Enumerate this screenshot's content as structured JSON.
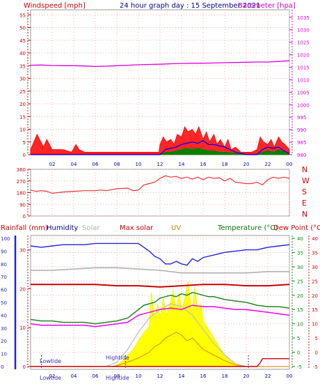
{
  "header": {
    "left_label": "Windspeed [mph]",
    "title": "24 hour graph day : 15 September 2021",
    "right_label": "Barometer [hpa]"
  },
  "colors": {
    "wind_gust": "#ff0000",
    "wind_avg": "#0000ff",
    "wind_min": "#008000",
    "barometer": "#dd00dd",
    "direction": "#ee3333",
    "rain": "#cc0000",
    "humidity": "#2222dd",
    "solar_line": "#b0b0b0",
    "solar_fill": "#ffff00",
    "uv": "#ee8800",
    "max_solar": "#c0c0c0",
    "temperature": "#228822",
    "dewpoint": "#ee00ee",
    "tide_marker": "#3333aa",
    "grid": "#ffaaaa",
    "left_axis_red": "#cc0000",
    "left_axis_blue": "#2222cc",
    "right_axis_green": "#008800",
    "right_axis_red": "#dd0000"
  },
  "chart_data": [
    {
      "id": "wind-barometer",
      "type": "line",
      "title": "24 hour graph day : 15 September 2021",
      "ylabel": "Windspeed [mph]",
      "y2label": "Barometer [hpa]",
      "ylim": [
        0,
        57
      ],
      "y2lim": [
        980,
        1038
      ],
      "yticks": [
        "0",
        "5",
        "10",
        "15",
        "20",
        "25",
        "30",
        "35",
        "40",
        "45",
        "50",
        "55"
      ],
      "y2ticks": [
        "980",
        "985",
        "990",
        "995",
        "1000",
        "1005",
        "1010",
        "1015",
        "1020",
        "1025",
        "1030",
        "1035"
      ],
      "xlim": [
        0,
        24
      ],
      "xticks": [
        "02",
        "04",
        "06",
        "08",
        "10",
        "12",
        "14",
        "16",
        "18",
        "20",
        "22",
        "00"
      ],
      "grid": true,
      "series": [
        {
          "key": "barometer",
          "axis": "y2",
          "x": [
            0,
            1,
            2,
            3,
            4,
            5,
            6,
            7,
            8,
            9,
            10,
            11,
            12,
            13,
            14,
            15,
            16,
            17,
            18,
            19,
            20,
            21,
            22,
            23,
            24
          ],
          "values": [
            1015.8,
            1015.9,
            1015.7,
            1015.6,
            1015.6,
            1015.5,
            1015.3,
            1015.4,
            1015.6,
            1015.8,
            1016.0,
            1016.1,
            1016.2,
            1016.4,
            1016.5,
            1016.6,
            1016.6,
            1016.7,
            1016.8,
            1016.9,
            1017.0,
            1017.1,
            1017.1,
            1017.3,
            1017.6
          ]
        },
        {
          "key": "wind_gust",
          "axis": "y",
          "x": [
            0,
            0.3,
            0.6,
            1.2,
            1.5,
            2.0,
            3.0,
            3.8,
            4.2,
            4.5,
            5.0,
            6.0,
            8.0,
            10.0,
            11.9,
            12.0,
            12.3,
            12.6,
            13.0,
            13.3,
            13.6,
            14.0,
            14.3,
            14.6,
            15.0,
            15.3,
            15.6,
            16.0,
            16.3,
            16.6,
            17.0,
            17.3,
            17.6,
            18.0,
            18.3,
            18.6,
            19.0,
            19.5,
            20.0,
            20.5,
            21.0,
            21.3,
            21.6,
            22.0,
            22.3,
            22.6,
            23.0,
            23.3,
            23.6,
            24.0
          ],
          "values": [
            2,
            5,
            8,
            3,
            6,
            2,
            2,
            1,
            4,
            2,
            1,
            1,
            1,
            1,
            1,
            4,
            7,
            5,
            6,
            4,
            8,
            7,
            11,
            9,
            10,
            8,
            11,
            6,
            9,
            5,
            8,
            4,
            6,
            3,
            6,
            2,
            3,
            1,
            1,
            1,
            2,
            7,
            5,
            4,
            6,
            3,
            7,
            5,
            4,
            2
          ]
        },
        {
          "key": "wind_avg",
          "axis": "y",
          "x": [
            0,
            2,
            4,
            6,
            8,
            10,
            12,
            12.5,
            13,
            13.5,
            14,
            14.5,
            15,
            15.5,
            16,
            16.5,
            17,
            17.5,
            18,
            18.5,
            19,
            20,
            21,
            21.5,
            22,
            22.5,
            23,
            23.5,
            24
          ],
          "values": [
            0,
            0,
            0,
            0,
            0,
            0,
            0,
            2,
            2.5,
            3,
            4,
            4.5,
            5,
            4.5,
            5.5,
            4,
            4,
            3.5,
            3,
            2,
            1,
            0,
            0,
            2,
            3,
            2.5,
            3,
            1.5,
            0.5
          ]
        },
        {
          "key": "wind_min",
          "axis": "y",
          "x": [
            0,
            2,
            4,
            6,
            8,
            10,
            12,
            12.5,
            13,
            13.5,
            14,
            14.5,
            15,
            15.5,
            16,
            16.5,
            17,
            17.5,
            18,
            19,
            20,
            21,
            21.5,
            22,
            22.5,
            23,
            23.5,
            24
          ],
          "values": [
            0,
            0,
            0,
            0,
            0,
            0,
            0,
            1,
            1,
            1.5,
            2,
            2.5,
            2,
            2.5,
            2,
            1.5,
            1.5,
            1,
            1,
            0.5,
            0,
            0,
            1,
            1.5,
            1,
            2,
            1,
            0
          ]
        }
      ]
    },
    {
      "id": "wind-direction",
      "type": "line",
      "ylim": [
        0,
        360
      ],
      "yticks": [
        "0",
        "90",
        "180",
        "270",
        "360"
      ],
      "y2ticks": [
        "N",
        "W",
        "S",
        "E",
        "N"
      ],
      "xlim": [
        0,
        24
      ],
      "series": [
        {
          "key": "direction",
          "x": [
            0,
            0.5,
            1,
            1.5,
            2,
            3,
            4,
            5,
            6,
            6.5,
            7,
            8,
            9,
            9.5,
            10,
            10.5,
            11,
            11.5,
            12,
            12.5,
            13,
            13.5,
            14,
            14.5,
            15,
            15.5,
            16,
            16.5,
            17,
            17.5,
            18,
            18.5,
            19,
            19.5,
            20,
            20.5,
            21,
            21.5,
            22,
            22.5,
            23,
            23.5,
            24
          ],
          "values": [
            200,
            190,
            195,
            190,
            175,
            185,
            190,
            195,
            195,
            200,
            195,
            210,
            215,
            195,
            200,
            240,
            250,
            260,
            290,
            310,
            300,
            305,
            290,
            300,
            285,
            300,
            280,
            300,
            290,
            295,
            270,
            290,
            260,
            255,
            250,
            250,
            260,
            240,
            280,
            300,
            290,
            300,
            290
          ]
        }
      ]
    },
    {
      "id": "temperature-humidity",
      "type": "line",
      "header_labels": [
        "Rainfall (mm)",
        "Humidity",
        "Solar",
        "Max solar",
        "UV",
        "Temperature (°C)",
        "Dew Point (°C)"
      ],
      "y_rain_ticks": [
        "0",
        "10",
        "20",
        "30"
      ],
      "y_humidity_ticks": [
        "0",
        "10",
        "20",
        "30",
        "40",
        "50",
        "60",
        "70",
        "80",
        "90",
        "100"
      ],
      "y_temperature_ticks": [
        "-5",
        "0",
        "5",
        "10",
        "15",
        "20",
        "25",
        "30",
        "35",
        "40"
      ],
      "y_dewpoint_ticks": [
        "-5",
        "0",
        "5",
        "10",
        "15",
        "20",
        "25",
        "30",
        "35",
        "40"
      ],
      "ylim_temperature": [
        -5,
        40
      ],
      "xlim": [
        0,
        24
      ],
      "xticks": [
        "02",
        "04",
        "06",
        "08",
        "10",
        "12",
        "14",
        "16",
        "18",
        "20",
        "22",
        "00"
      ],
      "tide_labels": [
        "Lowtide",
        "Hightide"
      ],
      "series": [
        {
          "key": "humidity",
          "x": [
            0,
            1,
            2,
            3,
            4,
            5,
            6,
            7,
            8,
            9,
            10,
            11,
            11.5,
            12,
            12.5,
            13,
            13.5,
            14,
            14.5,
            15,
            15.5,
            16,
            17,
            18,
            19,
            20,
            21,
            22,
            23,
            24
          ],
          "values": [
            94,
            93,
            94,
            95,
            95,
            95,
            96,
            96,
            96,
            96,
            96,
            90,
            86,
            84,
            80,
            80,
            82,
            80,
            79,
            84,
            82,
            85,
            87,
            89,
            90,
            91,
            91,
            93,
            94,
            95
          ]
        },
        {
          "key": "solar_line",
          "x": [
            0,
            2,
            4,
            6,
            8,
            10,
            12,
            14,
            16,
            18,
            20,
            22,
            24
          ],
          "values": [
            75,
            75,
            76,
            77,
            77,
            76,
            75,
            73,
            73,
            73,
            73,
            74,
            74
          ]
        },
        {
          "key": "max_solar",
          "x": [
            0,
            2,
            4,
            6,
            8,
            10,
            12,
            14,
            16,
            18,
            20,
            22,
            24
          ],
          "values": [
            64,
            64,
            64,
            64,
            63,
            63,
            62,
            63,
            64,
            64,
            63,
            63,
            64
          ]
        },
        {
          "key": "temperature",
          "x": [
            0,
            1,
            2,
            3,
            4,
            5,
            6,
            7,
            8,
            9,
            9.5,
            10,
            10.5,
            11,
            11.5,
            12,
            12.5,
            13,
            13.5,
            14,
            14.5,
            15,
            15.5,
            16,
            16.5,
            17,
            18,
            19,
            20,
            21,
            22,
            23,
            24
          ],
          "values": [
            11.5,
            11,
            11,
            10.5,
            10.5,
            10.5,
            10,
            10.5,
            11,
            12,
            13.5,
            15,
            16.5,
            17,
            17.5,
            19,
            19.5,
            20,
            19.5,
            20.5,
            20,
            21,
            20.5,
            20,
            19.5,
            19.5,
            18.5,
            18,
            17.5,
            16.5,
            16,
            16,
            15.5
          ]
        },
        {
          "key": "dewpoint",
          "x": [
            0,
            1,
            2,
            3,
            4,
            5,
            6,
            7,
            8,
            9,
            10,
            11,
            12,
            13,
            14,
            15,
            16,
            17,
            18,
            19,
            20,
            21,
            22,
            23,
            24
          ],
          "values": [
            10,
            9.5,
            9.5,
            9.5,
            9.5,
            9.5,
            9,
            9.5,
            10,
            10.5,
            13,
            14,
            15,
            15.5,
            15,
            16.5,
            16,
            16,
            15.5,
            15,
            15,
            14.5,
            14,
            13.5,
            13
          ]
        },
        {
          "key": "uv",
          "x": [
            0,
            7.5,
            8,
            9,
            10,
            11,
            11.5,
            12,
            12.5,
            13,
            13.5,
            14,
            14.5,
            15,
            15.5,
            16,
            17,
            18,
            19,
            20,
            24
          ],
          "values": [
            0,
            0,
            0.3,
            1.5,
            3,
            5,
            7,
            8,
            10,
            11,
            12,
            11,
            9,
            10,
            8,
            6,
            4,
            2,
            0.5,
            0,
            0
          ]
        },
        {
          "key": "solar_fill",
          "x": [
            0,
            7.5,
            8,
            8.5,
            9,
            9.5,
            10,
            10.5,
            11,
            11.2,
            11.5,
            11.8,
            12,
            12.3,
            12.6,
            13,
            13.2,
            13.5,
            13.8,
            14,
            14.3,
            14.6,
            15,
            15.2,
            15.5,
            15.8,
            16,
            16.5,
            17,
            17.5,
            18,
            18.5,
            19,
            19.5,
            20,
            24
          ],
          "values": [
            0,
            0,
            0.5,
            2,
            4,
            6,
            9,
            12,
            14,
            26,
            17,
            22,
            17,
            24,
            18,
            23,
            27,
            20,
            26,
            19,
            24,
            30,
            18,
            28,
            20,
            22,
            16,
            13,
            10,
            7,
            4,
            2,
            1,
            0.3,
            0,
            0
          ]
        },
        {
          "key": "max_solar_curve",
          "x": [
            0,
            7,
            8,
            9,
            10,
            11,
            12,
            13,
            14,
            15,
            16,
            17,
            18,
            19,
            20,
            24
          ],
          "values": [
            0,
            0,
            1.5,
            6,
            12,
            17,
            20,
            22,
            21,
            18,
            13,
            8,
            4,
            1,
            0,
            0
          ]
        },
        {
          "key": "rain",
          "x": [
            0,
            21,
            21.3,
            21.5,
            24
          ],
          "values": [
            0,
            0,
            1,
            2,
            2
          ]
        }
      ]
    }
  ]
}
